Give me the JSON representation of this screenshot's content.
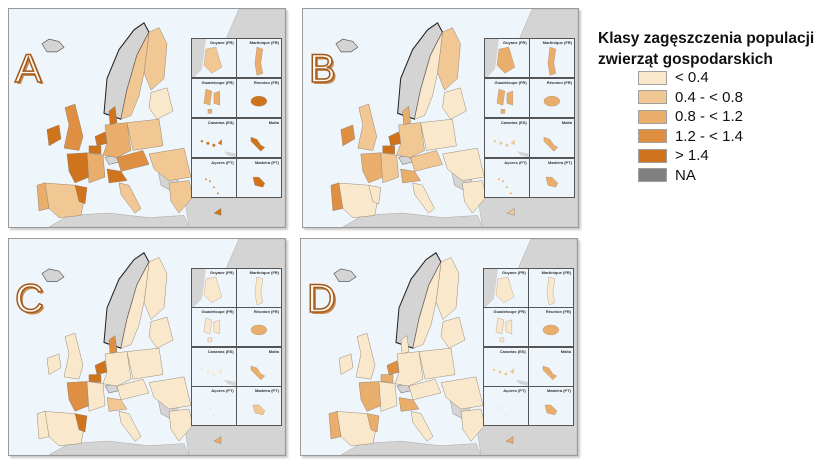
{
  "legend": {
    "title": "Klasy zagęszczenia populacji zwierząt gospodarskich",
    "items": [
      {
        "label": "< 0.4",
        "color": "#f9e8cc"
      },
      {
        "label": "0.4 - < 0.8",
        "color": "#f1c894"
      },
      {
        "label": "0.8 - < 1.2",
        "color": "#e9ad6c"
      },
      {
        "label": "1.2 - < 1.4",
        "color": "#df8f42"
      },
      {
        "label": "> 1.4",
        "color": "#cf741c"
      },
      {
        "label": "NA",
        "color": "#808080"
      }
    ]
  },
  "panels": [
    {
      "letter": "A"
    },
    {
      "letter": "B"
    },
    {
      "letter": "C"
    },
    {
      "letter": "D"
    }
  ],
  "insets": [
    {
      "label": "Guyane (FR)"
    },
    {
      "label": "Martinique (FR)"
    },
    {
      "label": "Guadeloupe (FR)"
    },
    {
      "label": "Réunion (FR)"
    },
    {
      "label": "Canarias (ES)"
    },
    {
      "label": "Malta"
    },
    {
      "label": "Açores (PT)"
    },
    {
      "label": "Madeira (PT)"
    }
  ],
  "colors": {
    "sea": "#eef5fb",
    "non_eu_land": "#d4d4d4",
    "border": "#6a6a6a"
  }
}
